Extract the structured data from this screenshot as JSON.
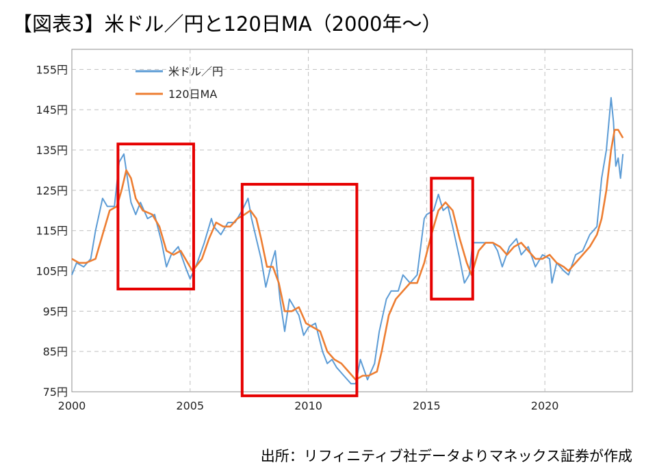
{
  "title": "【図表3】米ドル／円と120日MA（2000年〜）",
  "source": "出所：リフィニティブ社データよりマネックス証券が作成",
  "colors": {
    "usdjpy": "#5b9bd5",
    "ma120": "#ed7d31",
    "highlight": "#e60000",
    "grid": "#bfbfbf"
  },
  "chart_data": {
    "type": "line",
    "xlim": [
      2000,
      2023.7
    ],
    "ylim": [
      75,
      160
    ],
    "x_ticks": [
      2000,
      2005,
      2010,
      2015,
      2020
    ],
    "x_tick_labels": [
      "2000",
      "2005",
      "2010",
      "2015",
      "2020"
    ],
    "y_ticks": [
      75,
      85,
      95,
      105,
      115,
      125,
      135,
      145,
      155
    ],
    "y_tick_labels": [
      "75円",
      "85円",
      "95円",
      "105円",
      "115円",
      "125円",
      "135円",
      "145円",
      "155円"
    ],
    "grid": true,
    "legend": "top-left",
    "series": [
      {
        "name": "米ドル／円",
        "points": [
          [
            2000.0,
            104
          ],
          [
            2000.2,
            107
          ],
          [
            2000.5,
            106
          ],
          [
            2000.8,
            108
          ],
          [
            2001.0,
            115
          ],
          [
            2001.3,
            123
          ],
          [
            2001.5,
            121
          ],
          [
            2001.8,
            121
          ],
          [
            2002.0,
            132
          ],
          [
            2002.2,
            134
          ],
          [
            2002.5,
            122
          ],
          [
            2002.7,
            119
          ],
          [
            2002.9,
            122
          ],
          [
            2003.2,
            118
          ],
          [
            2003.5,
            119
          ],
          [
            2003.8,
            112
          ],
          [
            2004.0,
            106
          ],
          [
            2004.2,
            109
          ],
          [
            2004.5,
            111
          ],
          [
            2004.8,
            106
          ],
          [
            2005.0,
            103
          ],
          [
            2005.3,
            107
          ],
          [
            2005.6,
            112
          ],
          [
            2005.9,
            118
          ],
          [
            2006.0,
            116
          ],
          [
            2006.3,
            114
          ],
          [
            2006.6,
            117
          ],
          [
            2006.9,
            117
          ],
          [
            2007.2,
            120
          ],
          [
            2007.45,
            123
          ],
          [
            2007.6,
            118
          ],
          [
            2007.8,
            113
          ],
          [
            2008.0,
            108
          ],
          [
            2008.2,
            101
          ],
          [
            2008.45,
            107
          ],
          [
            2008.6,
            110
          ],
          [
            2008.8,
            98
          ],
          [
            2009.0,
            90
          ],
          [
            2009.2,
            98
          ],
          [
            2009.4,
            96
          ],
          [
            2009.6,
            94
          ],
          [
            2009.8,
            89
          ],
          [
            2010.0,
            91
          ],
          [
            2010.3,
            92
          ],
          [
            2010.6,
            85
          ],
          [
            2010.8,
            82
          ],
          [
            2011.0,
            83
          ],
          [
            2011.2,
            81
          ],
          [
            2011.5,
            79
          ],
          [
            2011.8,
            77
          ],
          [
            2012.0,
            77
          ],
          [
            2012.2,
            83
          ],
          [
            2012.5,
            78
          ],
          [
            2012.8,
            82
          ],
          [
            2013.0,
            90
          ],
          [
            2013.3,
            98
          ],
          [
            2013.5,
            100
          ],
          [
            2013.8,
            100
          ],
          [
            2014.0,
            104
          ],
          [
            2014.3,
            102
          ],
          [
            2014.6,
            104
          ],
          [
            2014.9,
            118
          ],
          [
            2015.0,
            119
          ],
          [
            2015.3,
            120
          ],
          [
            2015.5,
            124
          ],
          [
            2015.7,
            120
          ],
          [
            2015.9,
            121
          ],
          [
            2016.1,
            116
          ],
          [
            2016.4,
            108
          ],
          [
            2016.6,
            102
          ],
          [
            2016.8,
            104
          ],
          [
            2016.95,
            112
          ],
          [
            2017.2,
            112
          ],
          [
            2017.5,
            112
          ],
          [
            2017.8,
            112
          ],
          [
            2018.0,
            110
          ],
          [
            2018.2,
            106
          ],
          [
            2018.5,
            111
          ],
          [
            2018.8,
            113
          ],
          [
            2019.0,
            109
          ],
          [
            2019.3,
            111
          ],
          [
            2019.6,
            106
          ],
          [
            2019.9,
            109
          ],
          [
            2020.2,
            108
          ],
          [
            2020.3,
            102
          ],
          [
            2020.5,
            107
          ],
          [
            2020.8,
            105
          ],
          [
            2021.0,
            104
          ],
          [
            2021.3,
            109
          ],
          [
            2021.6,
            110
          ],
          [
            2021.9,
            114
          ],
          [
            2022.2,
            116
          ],
          [
            2022.4,
            128
          ],
          [
            2022.6,
            135
          ],
          [
            2022.8,
            148
          ],
          [
            2022.9,
            142
          ],
          [
            2023.0,
            131
          ],
          [
            2023.1,
            133
          ],
          [
            2023.2,
            128
          ],
          [
            2023.3,
            134
          ]
        ]
      },
      {
        "name": "120日MA",
        "points": [
          [
            2000.0,
            108
          ],
          [
            2000.3,
            107
          ],
          [
            2000.6,
            107
          ],
          [
            2001.0,
            108
          ],
          [
            2001.3,
            114
          ],
          [
            2001.6,
            120
          ],
          [
            2001.9,
            121
          ],
          [
            2002.1,
            125
          ],
          [
            2002.3,
            130
          ],
          [
            2002.5,
            128
          ],
          [
            2002.7,
            123
          ],
          [
            2003.0,
            120
          ],
          [
            2003.4,
            119
          ],
          [
            2003.7,
            116
          ],
          [
            2004.0,
            110
          ],
          [
            2004.3,
            109
          ],
          [
            2004.6,
            110
          ],
          [
            2004.9,
            107
          ],
          [
            2005.1,
            105
          ],
          [
            2005.5,
            108
          ],
          [
            2005.8,
            113
          ],
          [
            2006.1,
            117
          ],
          [
            2006.4,
            116
          ],
          [
            2006.7,
            116
          ],
          [
            2007.0,
            118
          ],
          [
            2007.3,
            119
          ],
          [
            2007.55,
            120
          ],
          [
            2007.8,
            118
          ],
          [
            2008.0,
            113
          ],
          [
            2008.25,
            106
          ],
          [
            2008.5,
            106
          ],
          [
            2008.75,
            102
          ],
          [
            2009.0,
            95
          ],
          [
            2009.3,
            95
          ],
          [
            2009.6,
            96
          ],
          [
            2009.9,
            92
          ],
          [
            2010.2,
            91
          ],
          [
            2010.5,
            90
          ],
          [
            2010.8,
            85
          ],
          [
            2011.1,
            83
          ],
          [
            2011.4,
            82
          ],
          [
            2011.7,
            80
          ],
          [
            2012.0,
            78
          ],
          [
            2012.3,
            79
          ],
          [
            2012.55,
            79
          ],
          [
            2012.9,
            80
          ],
          [
            2013.1,
            85
          ],
          [
            2013.4,
            94
          ],
          [
            2013.7,
            98
          ],
          [
            2014.0,
            100
          ],
          [
            2014.3,
            102
          ],
          [
            2014.6,
            102
          ],
          [
            2014.9,
            107
          ],
          [
            2015.2,
            114
          ],
          [
            2015.5,
            120
          ],
          [
            2015.8,
            122
          ],
          [
            2016.1,
            120
          ],
          [
            2016.4,
            113
          ],
          [
            2016.7,
            107
          ],
          [
            2016.9,
            104
          ],
          [
            2017.2,
            110
          ],
          [
            2017.5,
            112
          ],
          [
            2017.8,
            112
          ],
          [
            2018.1,
            111
          ],
          [
            2018.4,
            109
          ],
          [
            2018.7,
            111
          ],
          [
            2019.0,
            112
          ],
          [
            2019.3,
            110
          ],
          [
            2019.6,
            108
          ],
          [
            2019.9,
            108
          ],
          [
            2020.2,
            109
          ],
          [
            2020.5,
            107
          ],
          [
            2020.8,
            106
          ],
          [
            2021.0,
            105
          ],
          [
            2021.3,
            107
          ],
          [
            2021.6,
            109
          ],
          [
            2021.9,
            111
          ],
          [
            2022.2,
            114
          ],
          [
            2022.4,
            118
          ],
          [
            2022.6,
            125
          ],
          [
            2022.8,
            135
          ],
          [
            2022.95,
            140
          ],
          [
            2023.1,
            140
          ],
          [
            2023.3,
            138
          ]
        ]
      }
    ],
    "annotations": [
      {
        "type": "box",
        "x": [
          2001.95,
          2005.15
        ],
        "y": [
          100.5,
          136.5
        ]
      },
      {
        "type": "box",
        "x": [
          2007.2,
          2012.05
        ],
        "y": [
          74,
          126.5
        ]
      },
      {
        "type": "box",
        "x": [
          2015.2,
          2016.95
        ],
        "y": [
          98,
          128
        ]
      }
    ]
  }
}
